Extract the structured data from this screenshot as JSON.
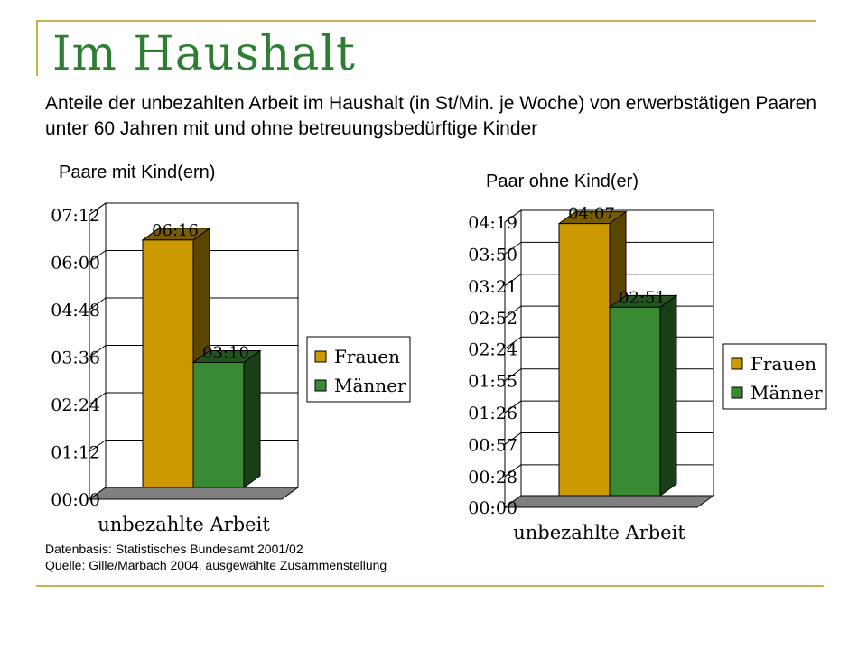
{
  "title": "Im Haushalt",
  "subtitle": "Anteile der unbezahlten Arbeit im Haushalt (in St/Min. je Woche) von erwerbstätigen Paaren unter 60 Jahren mit und ohne betreuungsbedürftige Kinder",
  "source": {
    "line1": "Datenbasis: Statistisches Bundesamt 2001/02",
    "line2": "Quelle: Gille/Marbach 2004, ausgewählte Zusammenstellung"
  },
  "colors": {
    "frauen": "#cc9900",
    "maenner": "#3a8a34",
    "title": "#2e7d32",
    "accent_line": "#c9b24a"
  },
  "chart_data": [
    {
      "type": "bar",
      "heading": "Paare mit Kind(ern)",
      "categories": [
        "unbezahlte Arbeit"
      ],
      "series": [
        {
          "name": "Frauen",
          "values": [
            376
          ],
          "label": "06:16"
        },
        {
          "name": "Männer",
          "values": [
            190
          ],
          "label": "03:10"
        }
      ],
      "y_unit": "minutes",
      "ylim": [
        0,
        432
      ],
      "yticks": [
        0,
        72,
        144,
        216,
        288,
        360,
        432
      ],
      "ytick_labels": [
        "00:00",
        "01:12",
        "02:24",
        "03:36",
        "04:48",
        "06:00",
        "07:12"
      ],
      "xlabel": "unbezahlte Arbeit",
      "grid": true,
      "legend": [
        "Frauen",
        "Männer"
      ],
      "legend_position": "right"
    },
    {
      "type": "bar",
      "heading": "Paar ohne Kind(er)",
      "categories": [
        "unbezahlte Arbeit"
      ],
      "series": [
        {
          "name": "Frauen",
          "values": [
            247
          ],
          "label": "04:07"
        },
        {
          "name": "Männer",
          "values": [
            171
          ],
          "label": "02:51"
        }
      ],
      "y_unit": "minutes",
      "ylim": [
        0,
        259
      ],
      "yticks": [
        0,
        28,
        57,
        86,
        115,
        144,
        172,
        201,
        230,
        259
      ],
      "ytick_labels": [
        "00:00",
        "00:28",
        "00:57",
        "01:26",
        "01:55",
        "02:24",
        "02:52",
        "03:21",
        "03:50",
        "04:19"
      ],
      "xlabel": "unbezahlte Arbeit",
      "grid": true,
      "legend": [
        "Frauen",
        "Männer"
      ],
      "legend_position": "right"
    }
  ]
}
